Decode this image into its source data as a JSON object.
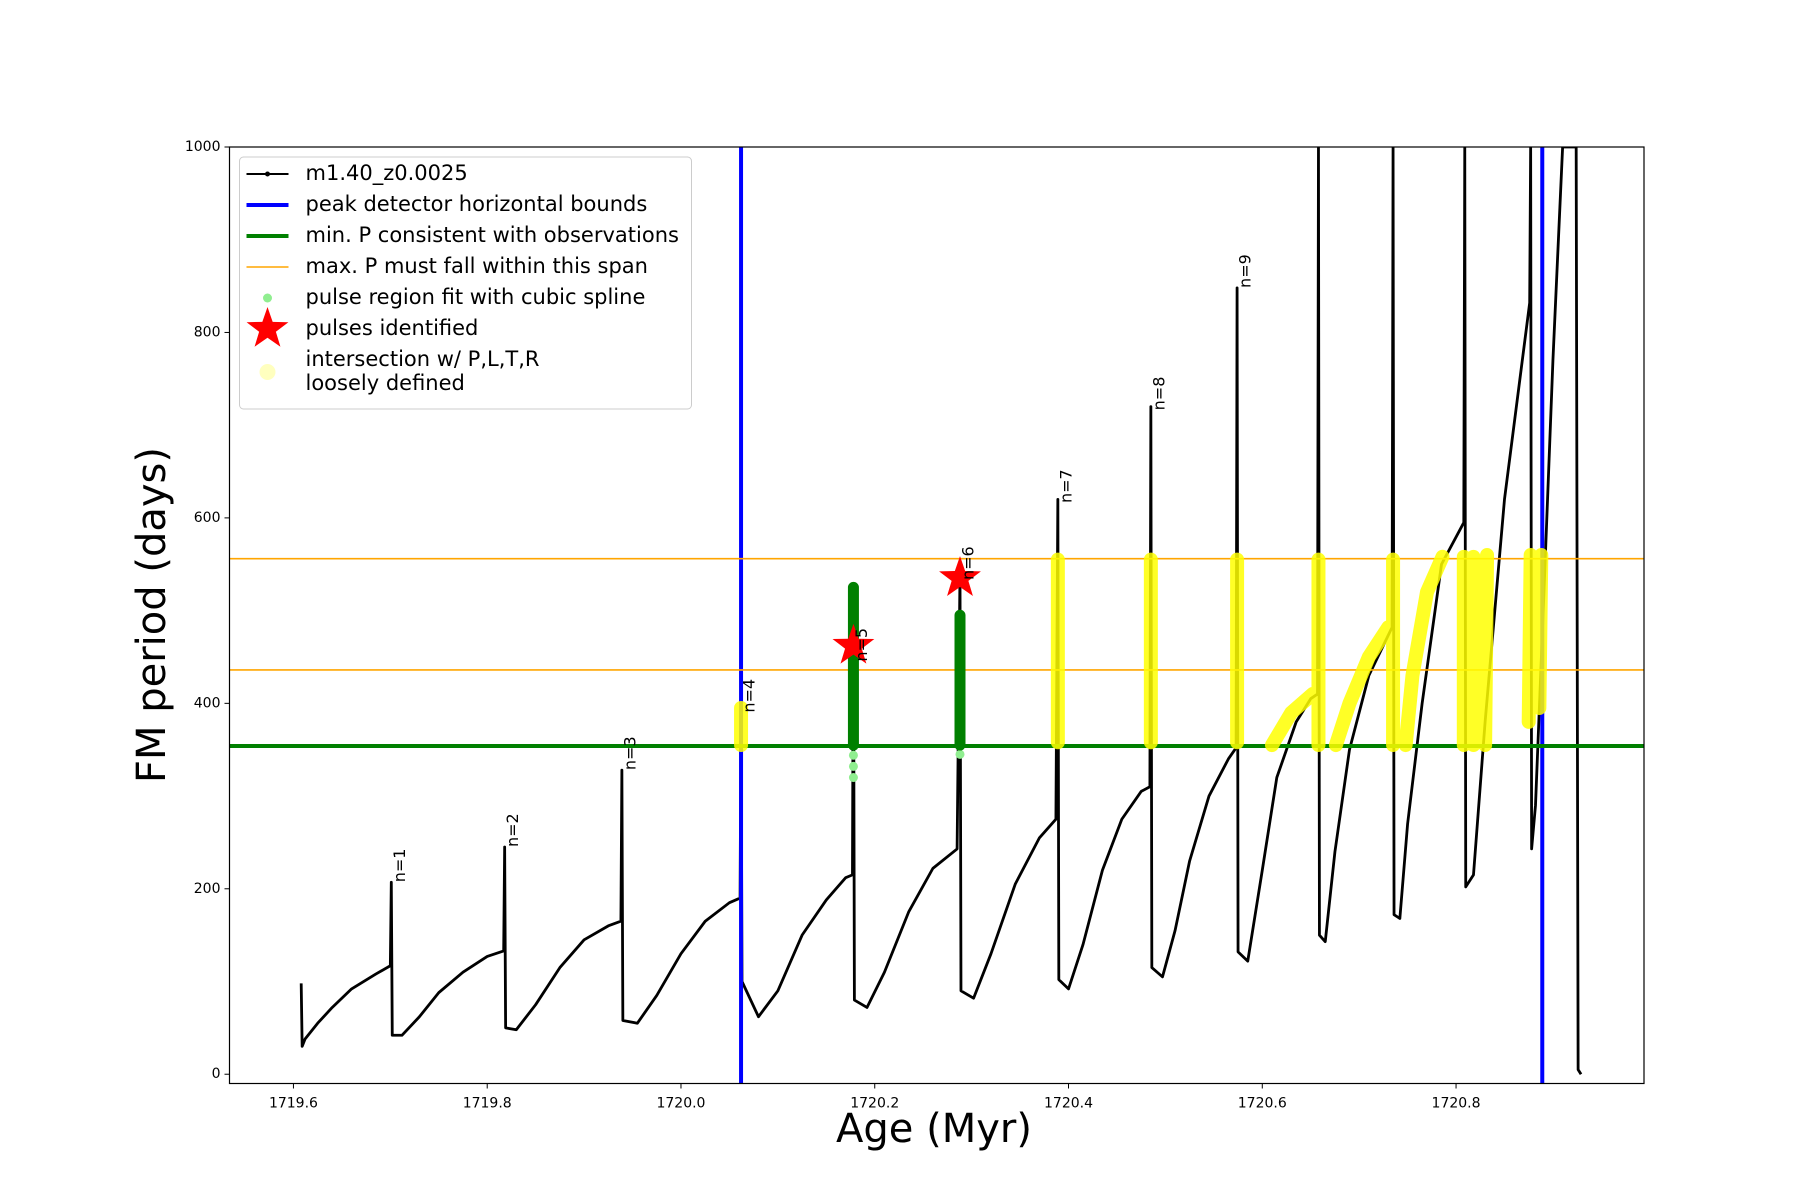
{
  "chart_data": {
    "type": "line",
    "xlabel": "Age (Myr)",
    "ylabel": "FM period (days)",
    "xlim": [
      1719.534,
      1720.994
    ],
    "ylim": [
      -10,
      1000
    ],
    "xticks": [
      1719.6,
      1719.8,
      {
        "value": 1720.0,
        "label": "1720.0"
      },
      1720.2,
      1720.4,
      1720.6,
      1720.8
    ],
    "yticks": [
      0,
      200,
      400,
      600,
      800,
      1000
    ],
    "legend": "upper left",
    "series": [
      {
        "name": "m1.40_z0.0025",
        "type": "line",
        "color": "#000000",
        "x": [
          1719.608,
          1719.609,
          1719.612,
          1719.625,
          1719.64,
          1719.66,
          1719.685,
          1719.7,
          1719.701,
          1719.702,
          1719.712,
          1719.73,
          1719.75,
          1719.775,
          1719.8,
          1719.817,
          1719.818,
          1719.819,
          1719.83,
          1719.85,
          1719.875,
          1719.9,
          1719.925,
          1719.938,
          1719.939,
          1719.94,
          1719.955,
          1719.975,
          1720.0,
          1720.025,
          1720.05,
          1720.061,
          1720.062,
          1720.063,
          1720.08,
          1720.1,
          1720.125,
          1720.15,
          1720.17,
          1720.177,
          1720.178,
          1720.179,
          1720.192,
          1720.21,
          1720.235,
          1720.26,
          1720.285,
          1720.288,
          1720.289,
          1720.302,
          1720.32,
          1720.345,
          1720.37,
          1720.387,
          1720.389,
          1720.39,
          1720.4,
          1720.415,
          1720.435,
          1720.455,
          1720.475,
          1720.484,
          1720.485,
          1720.486,
          1720.497,
          1720.51,
          1720.525,
          1720.545,
          1720.565,
          1720.573,
          1720.574,
          1720.575,
          1720.585,
          1720.6,
          1720.615,
          1720.635,
          1720.65,
          1720.657,
          1720.658,
          1720.659,
          1720.665,
          1720.675,
          1720.69,
          1720.71,
          1720.734,
          1720.735,
          1720.736,
          1720.742,
          1720.75,
          1720.765,
          1720.785,
          1720.808,
          1720.809,
          1720.81,
          1720.818,
          1720.83,
          1720.85,
          1720.876,
          1720.877,
          1720.878,
          1720.882,
          1720.89,
          1720.9,
          1720.91,
          1720.924,
          1720.926,
          1720.929
        ],
        "values": [
          98,
          30,
          38,
          55,
          72,
          92,
          108,
          117,
          207,
          42,
          42,
          62,
          88,
          110,
          127,
          133,
          245,
          50,
          48,
          75,
          115,
          145,
          160,
          165,
          328,
          58,
          55,
          85,
          130,
          165,
          185,
          190,
          390,
          100,
          62,
          90,
          150,
          188,
          212,
          215,
          525,
          80,
          72,
          110,
          175,
          222,
          243,
          540,
          90,
          82,
          130,
          205,
          255,
          275,
          620,
          102,
          92,
          140,
          220,
          275,
          305,
          310,
          720,
          115,
          105,
          155,
          230,
          300,
          340,
          352,
          848,
          132,
          122,
          220,
          320,
          380,
          405,
          410,
          1000,
          150,
          143,
          240,
          350,
          430,
          482,
          1000,
          172,
          168,
          270,
          400,
          550,
          595,
          1000,
          202,
          215,
          380,
          620,
          832,
          1000,
          243,
          290,
          500,
          770,
          1000,
          1000,
          5,
          0
        ]
      },
      {
        "name": "peak detector horizontal bounds",
        "type": "vline",
        "color": "#0000ff",
        "x": [
          1720.062,
          1720.889
        ]
      },
      {
        "name": "min. P consistent with observations",
        "type": "hline",
        "color": "#008000",
        "values": [
          354
        ]
      },
      {
        "name": "max. P must fall within this span",
        "type": "hline",
        "color": "#ffa500",
        "values": [
          436,
          556
        ]
      },
      {
        "name": "pulse region fit with cubic spline",
        "type": "scatter",
        "color": "#90ee90",
        "x": [
          1720.178,
          1720.178,
          1720.178,
          1720.178,
          1720.288,
          1720.288,
          1720.288
        ],
        "values": [
          320,
          332,
          344,
          356,
          345,
          355,
          365
        ]
      },
      {
        "type": "thick",
        "color": "#008000",
        "x": [
          1720.178,
          1720.178,
          null,
          1720.288,
          1720.288,
          null,
          1720.178,
          1720.178
        ],
        "values": [
          355,
          498,
          null,
          355,
          495,
          null,
          498,
          525
        ]
      },
      {
        "name": "pulses identified",
        "type": "star",
        "color": "#ff0000",
        "x": [
          1720.178,
          1720.288
        ],
        "values": [
          462,
          535
        ]
      },
      {
        "name": "intersection w/ P,L,T,R\nloosely defined",
        "type": "band",
        "color": "#ffff00",
        "x": [
          1720.062,
          1720.062,
          null,
          1720.389,
          1720.389,
          null,
          1720.485,
          1720.485,
          null,
          1720.574,
          1720.574,
          null,
          1720.61,
          1720.63,
          1720.652,
          null,
          1720.658,
          1720.658,
          null,
          1720.676,
          1720.69,
          1720.71,
          1720.73,
          null,
          1720.735,
          1720.735,
          null,
          1720.748,
          1720.755,
          1720.77,
          1720.786,
          null,
          1720.808,
          1720.808,
          null,
          1720.818,
          1720.818,
          null,
          1720.83,
          1720.832,
          null,
          1720.875,
          1720.877,
          null,
          1720.886,
          1720.888
        ],
        "values": [
          355,
          395,
          null,
          358,
          555,
          null,
          358,
          555,
          null,
          358,
          555,
          null,
          355,
          390,
          410,
          null,
          355,
          555,
          null,
          355,
          400,
          450,
          482,
          null,
          355,
          555,
          null,
          355,
          430,
          520,
          558,
          null,
          355,
          558,
          null,
          355,
          558,
          null,
          355,
          560,
          null,
          380,
          560,
          null,
          395,
          560
        ]
      }
    ],
    "annotations": [
      {
        "text": "n=1",
        "x": 1719.701,
        "y": 207
      },
      {
        "text": "n=2",
        "x": 1719.818,
        "y": 245
      },
      {
        "text": "n=3",
        "x": 1719.939,
        "y": 328
      },
      {
        "text": "n=4",
        "x": 1720.062,
        "y": 390
      },
      {
        "text": "n=5",
        "x": 1720.178,
        "y": 445
      },
      {
        "text": "n=6",
        "x": 1720.288,
        "y": 533
      },
      {
        "text": "n=7",
        "x": 1720.389,
        "y": 616
      },
      {
        "text": "n=8",
        "x": 1720.485,
        "y": 716
      },
      {
        "text": "n=9",
        "x": 1720.574,
        "y": 848
      }
    ]
  }
}
